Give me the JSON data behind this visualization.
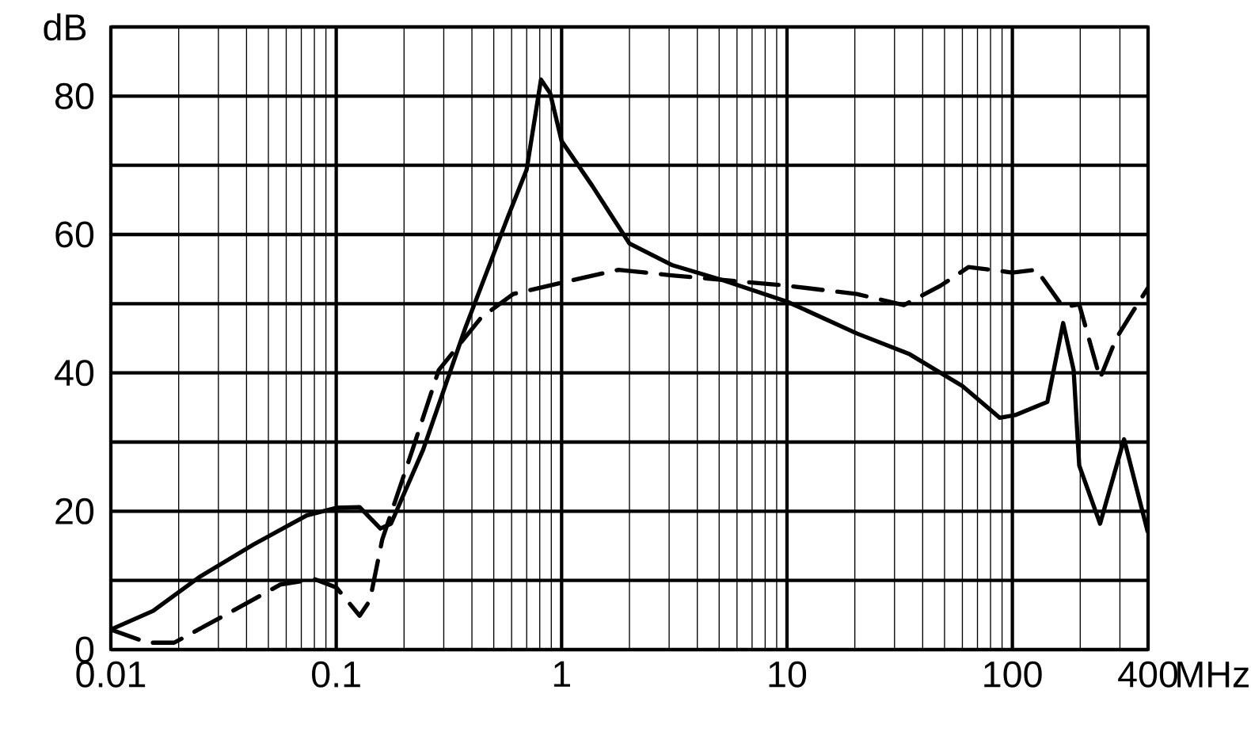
{
  "chart_data": {
    "type": "line",
    "xlabel": "MHz",
    "ylabel": "dB",
    "log": "x",
    "grid": true,
    "xlim": [
      0.01,
      400
    ],
    "ylim": [
      0,
      90
    ],
    "xticks": [
      0.01,
      0.1,
      1,
      10,
      100,
      400
    ],
    "yticks": [
      0,
      {
        "value": 10,
        "label": null
      },
      20,
      {
        "value": 30,
        "label": null
      },
      40,
      {
        "value": 50,
        "label": null
      },
      60,
      {
        "value": 70,
        "label": null
      },
      80,
      {
        "value": 90,
        "label": null
      }
    ],
    "series": [
      {
        "color": "#000000",
        "line_style": "solid",
        "x": [
          0.01,
          0.0154,
          0.025,
          0.043,
          0.074,
          0.1,
          0.127,
          0.157,
          0.175,
          0.243,
          0.374,
          0.577,
          0.7,
          0.81,
          0.89,
          1.0,
          1.37,
          2.0,
          3.08,
          5.3,
          10,
          20.4,
          35,
          60,
          88,
          103,
          143,
          168,
          187,
          198,
          245,
          313,
          398
        ],
        "values": [
          2.9,
          5.6,
          10.6,
          15.2,
          19.4,
          20.5,
          20.6,
          17.5,
          18.2,
          28.9,
          46.5,
          62.5,
          69.4,
          82.4,
          80.4,
          73.5,
          67,
          58.7,
          55.6,
          53.3,
          50.3,
          45.7,
          42.7,
          38.1,
          33.5,
          33.9,
          35.8,
          47.2,
          40.4,
          26.6,
          18.2,
          30.4,
          17.1
        ]
      },
      {
        "color": "#000000",
        "line_style": "dashed",
        "x": [
          0.01,
          0.0146,
          0.0191,
          0.033,
          0.0565,
          0.08,
          0.1,
          0.127,
          0.141,
          0.16,
          0.218,
          0.285,
          0.44,
          0.61,
          0.99,
          1.79,
          3.08,
          10,
          20.4,
          33,
          48,
          64,
          100,
          128,
          168,
          198,
          245,
          288,
          340,
          398
        ],
        "values": [
          2.9,
          1.0,
          1.0,
          5.2,
          9.4,
          10.2,
          9.0,
          4.9,
          7.1,
          15.9,
          28.9,
          40.4,
          48,
          51.4,
          53,
          54.9,
          54.1,
          52.6,
          51.4,
          49.8,
          52.6,
          55.3,
          54.5,
          54.9,
          49.5,
          49.9,
          39.2,
          44.9,
          48.7,
          52.2
        ]
      }
    ]
  }
}
